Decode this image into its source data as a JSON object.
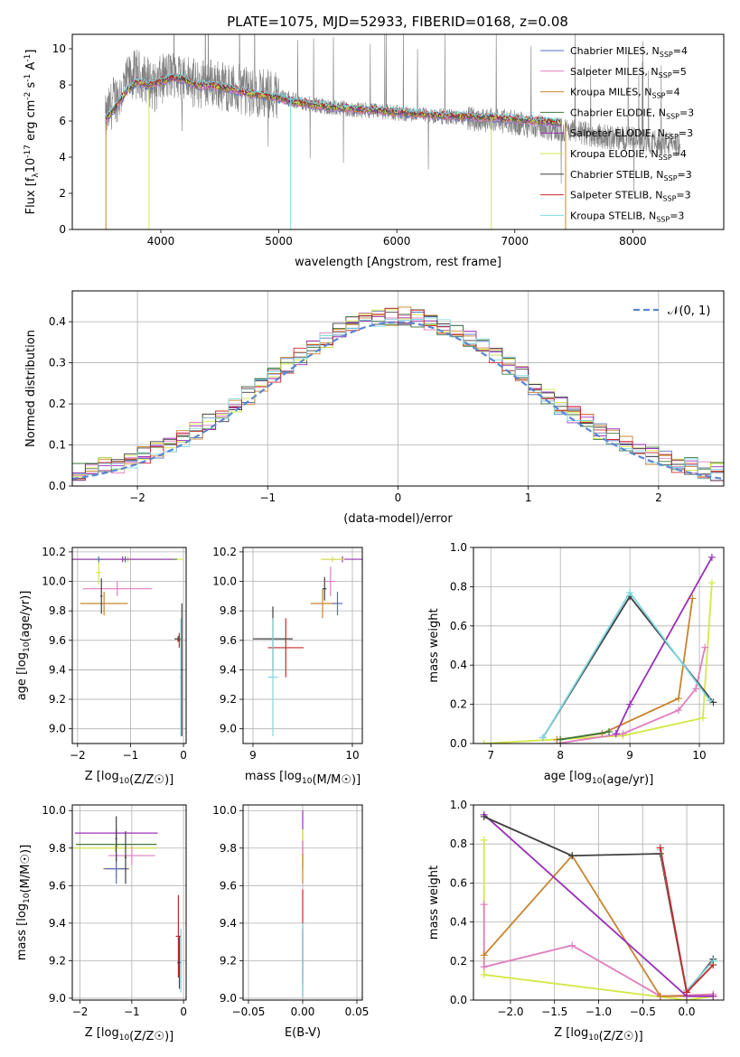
{
  "figure": {
    "title": "PLATE=1075, MJD=52933, FIBERID=0168, z=0.08"
  },
  "chart_data": [
    {
      "id": "spectrum",
      "type": "line",
      "title": "PLATE=1075, MJD=52933, FIBERID=0168, z=0.08",
      "xlabel": "wavelength [Angstrom, rest frame]",
      "ylabel_parts": [
        "Flux [f",
        "λ",
        "10",
        "-17",
        " erg cm",
        "-2",
        " s",
        "-1",
        " A",
        "-1",
        "]"
      ],
      "xlim": [
        3250,
        8770
      ],
      "ylim": [
        0,
        10.8
      ],
      "xticks": [
        4000,
        5000,
        6000,
        7000,
        8000
      ],
      "yticks": [
        0,
        2,
        4,
        6,
        8,
        10
      ],
      "grid": false,
      "legend_position": "top-right",
      "data_color": "#808080",
      "data_x": [
        3530,
        3560,
        3600,
        3650,
        3700,
        3750,
        3800,
        3850,
        3900,
        3950,
        4000,
        4100,
        4200,
        4300,
        4400,
        4500,
        4600,
        4700,
        4800,
        4900,
        5000,
        5100,
        5200,
        5300,
        5400,
        5500,
        5700,
        5900,
        6100,
        6300,
        6500,
        6700,
        6900,
        7100,
        7300,
        7430,
        7600,
        7800,
        8000,
        8200,
        8400
      ],
      "data_y": [
        6.0,
        6.5,
        7.2,
        7.4,
        8.0,
        8.5,
        8.6,
        8.4,
        8.2,
        7.8,
        8.3,
        8.6,
        8.4,
        8.0,
        8.2,
        8.0,
        7.8,
        7.7,
        7.5,
        7.6,
        7.4,
        7.2,
        7.0,
        6.9,
        6.8,
        6.7,
        6.6,
        6.5,
        6.4,
        6.3,
        6.2,
        6.1,
        6.0,
        5.8,
        5.6,
        5.5,
        5.3,
        5.1,
        5.0,
        4.8,
        4.7
      ],
      "model_x": [
        3530,
        3600,
        3700,
        3800,
        3900,
        4000,
        4100,
        4200,
        4300,
        4400,
        4500,
        4600,
        4700,
        4800,
        4900,
        5000,
        5100,
        5200,
        5400,
        5600,
        5800,
        6000,
        6200,
        6400,
        6600,
        6800,
        7000,
        7200,
        7400
      ],
      "model_y": [
        6.1,
        6.6,
        7.6,
        8.2,
        8.0,
        8.2,
        8.4,
        8.3,
        8.0,
        8.0,
        7.9,
        7.8,
        7.6,
        7.5,
        7.4,
        7.3,
        7.1,
        7.0,
        6.8,
        6.7,
        6.6,
        6.5,
        6.4,
        6.3,
        6.25,
        6.2,
        6.1,
        6.0,
        5.9
      ],
      "series": [
        {
          "name": "Chabrier MILES, N",
          "sub": "SSP",
          "tail": "=4",
          "color": "#5a6fb8"
        },
        {
          "name": "Salpeter MILES, N",
          "sub": "SSP",
          "tail": "=5",
          "color": "#e07fbf"
        },
        {
          "name": "Kroupa MILES, N",
          "sub": "SSP",
          "tail": "=4",
          "color": "#c8842e"
        },
        {
          "name": "Chabrier ELODIE, N",
          "sub": "SSP",
          "tail": "=3",
          "color": "#3c7a3c"
        },
        {
          "name": "Salpeter ELODIE, N",
          "sub": "SSP",
          "tail": "=3",
          "color": "#9b30b8"
        },
        {
          "name": "Kroupa ELODIE, N",
          "sub": "SSP",
          "tail": "=4",
          "color": "#d4e848"
        },
        {
          "name": "Chabrier STELIB, N",
          "sub": "SSP",
          "tail": "=3",
          "color": "#404040"
        },
        {
          "name": "Salpeter STELIB, N",
          "sub": "SSP",
          "tail": "=3",
          "color": "#c8282a"
        },
        {
          "name": "Kroupa STELIB, N",
          "sub": "SSP",
          "tail": "=3",
          "color": "#7fd8e0"
        }
      ]
    },
    {
      "id": "residuals",
      "type": "line",
      "xlabel": "(data-model)/error",
      "ylabel": "Normed distribution",
      "xlim": [
        -2.5,
        2.5
      ],
      "ylim": [
        0,
        0.475
      ],
      "xticks": [
        -2,
        -1,
        0,
        1,
        2
      ],
      "yticks": [
        0.0,
        0.1,
        0.2,
        0.3,
        0.4
      ],
      "grid": true,
      "legend_position": "top-right",
      "gaussian_label": "𝒩(0, 1)",
      "gaussian_color": "#5b86d0",
      "bin_width": 0.1,
      "bin_start": -2.5,
      "hist_colors": [
        "#5a6fb8",
        "#e07fbf",
        "#c8842e",
        "#3c7a3c",
        "#9b30b8",
        "#d4e848",
        "#404040",
        "#c8282a",
        "#7fd8e0"
      ]
    },
    {
      "id": "age-vs-Z",
      "type": "scatter",
      "xlabel": "Z [log10(Z/Z☉)]",
      "ylabel": "age  [log10(age/yr)]",
      "xlim": [
        -2.1,
        0.05
      ],
      "ylim": [
        8.9,
        10.23
      ],
      "xticks": [
        -2,
        -1,
        0
      ],
      "yticks": [
        9.0,
        9.2,
        9.4,
        9.6,
        9.8,
        10.0,
        10.2
      ],
      "grid": true,
      "points": [
        {
          "x": -1.05,
          "y": 10.15,
          "xerr": 1.05,
          "yerr": 0.02,
          "color": "#d4e848"
        },
        {
          "x": -1.1,
          "y": 10.15,
          "xerr": 0.98,
          "yerr": 0.02,
          "color": "#3c7a3c"
        },
        {
          "x": -1.15,
          "y": 10.15,
          "xerr": 0.95,
          "yerr": 0.02,
          "color": "#9b30b8"
        },
        {
          "x": -1.6,
          "y": 10.06,
          "xerr": 0.05,
          "yerr": 0.08,
          "color": "#d4e848"
        },
        {
          "x": -1.25,
          "y": 9.95,
          "xerr": 0.65,
          "yerr": 0.05,
          "color": "#e07fbf"
        },
        {
          "x": -1.5,
          "y": 9.85,
          "xerr": 0.45,
          "yerr": 0.08,
          "color": "#c8842e"
        },
        {
          "x": -1.6,
          "y": 10.15,
          "xerr": 0.05,
          "yerr": 0.02,
          "color": "#5a6fb8"
        },
        {
          "x": -1.55,
          "y": 9.9,
          "xerr": 0.02,
          "yerr": 0.12,
          "color": "#404040"
        },
        {
          "x": -0.1,
          "y": 9.61,
          "xerr": 0.07,
          "yerr": 0.02,
          "color": "#404040"
        },
        {
          "x": -0.08,
          "y": 9.6,
          "xerr": 0.04,
          "yerr": 0.05,
          "color": "#c8282a"
        },
        {
          "x": -0.05,
          "y": 9.35,
          "xerr": 0.02,
          "yerr": 0.4,
          "color": "#7fd8e0"
        },
        {
          "x": -0.03,
          "y": 9.4,
          "xerr": 0.02,
          "yerr": 0.45,
          "color": "#404040"
        }
      ]
    },
    {
      "id": "age-vs-mass",
      "type": "scatter",
      "xlabel": "mass [log10(M/M☉)]",
      "ylabel": "",
      "xlim": [
        8.9,
        10.1
      ],
      "ylim": [
        8.9,
        10.23
      ],
      "xticks": [
        9,
        10
      ],
      "yticks": [
        9.0,
        9.2,
        9.4,
        9.6,
        9.8,
        10.0,
        10.2
      ],
      "grid": true,
      "points": [
        {
          "x": 9.9,
          "y": 10.15,
          "xerr": 0.2,
          "yerr": 0.02,
          "color": "#9b30b8"
        },
        {
          "x": 9.8,
          "y": 10.15,
          "xerr": 0.12,
          "yerr": 0.02,
          "color": "#d4e848"
        },
        {
          "x": 9.78,
          "y": 10.0,
          "xerr": 0.05,
          "yerr": 0.1,
          "color": "#e07fbf"
        },
        {
          "x": 9.7,
          "y": 9.85,
          "xerr": 0.12,
          "yerr": 0.1,
          "color": "#c8842e"
        },
        {
          "x": 9.85,
          "y": 9.85,
          "xerr": 0.05,
          "yerr": 0.08,
          "color": "#5a6fb8"
        },
        {
          "x": 9.72,
          "y": 9.95,
          "xerr": 0.02,
          "yerr": 0.08,
          "color": "#404040"
        },
        {
          "x": 9.2,
          "y": 9.61,
          "xerr": 0.2,
          "yerr": 0.22,
          "color": "#404040"
        },
        {
          "x": 9.33,
          "y": 9.55,
          "xerr": 0.18,
          "yerr": 0.2,
          "color": "#c8282a"
        },
        {
          "x": 9.2,
          "y": 9.35,
          "xerr": 0.05,
          "yerr": 0.4,
          "color": "#7fd8e0"
        }
      ]
    },
    {
      "id": "weight-vs-age",
      "type": "line",
      "xlabel": "age  [log10(age/yr)]",
      "ylabel": "mass weight",
      "xlim": [
        6.75,
        10.35
      ],
      "ylim": [
        0,
        1.0
      ],
      "xticks": [
        7,
        8,
        9,
        10
      ],
      "yticks": [
        0.0,
        0.2,
        0.4,
        0.6,
        0.8,
        1.0
      ],
      "grid": true,
      "series": [
        {
          "color": "#d4e848",
          "x": [
            6.9,
            8.9,
            10.05,
            10.18
          ],
          "y": [
            0.0,
            0.04,
            0.13,
            0.82
          ]
        },
        {
          "color": "#e07fbf",
          "x": [
            7.95,
            8.9,
            9.7,
            9.95,
            10.08
          ],
          "y": [
            0.0,
            0.05,
            0.17,
            0.28,
            0.49
          ]
        },
        {
          "color": "#c8842e",
          "x": [
            7.95,
            8.6,
            9.7,
            9.9
          ],
          "y": [
            0.02,
            0.05,
            0.23,
            0.74
          ]
        },
        {
          "color": "#9b30b8",
          "x": [
            8.8,
            9.0,
            10.18
          ],
          "y": [
            0.05,
            0.2,
            0.95
          ]
        },
        {
          "color": "#404040",
          "x": [
            7.75,
            9.0,
            10.2
          ],
          "y": [
            0.03,
            0.75,
            0.21
          ]
        },
        {
          "color": "#7fd8e0",
          "x": [
            7.75,
            9.0,
            10.15
          ],
          "y": [
            0.03,
            0.77,
            0.22
          ]
        },
        {
          "color": "#3c7a3c",
          "x": [
            8.0,
            8.7
          ],
          "y": [
            0.02,
            0.06
          ]
        }
      ]
    },
    {
      "id": "mass-vs-Z",
      "type": "scatter",
      "xlabel": "Z [log10(Z/Z☉)]",
      "ylabel": "mass [log10(M/M☉)]",
      "xlim": [
        -2.15,
        0.05
      ],
      "ylim": [
        8.99,
        10.03
      ],
      "xticks": [
        -2,
        -1,
        0
      ],
      "yticks": [
        9.0,
        9.2,
        9.4,
        9.6,
        9.8,
        10.0
      ],
      "grid": true,
      "points": [
        {
          "x": -1.3,
          "y": 9.88,
          "xerr": 0.8,
          "yerr": 0.02,
          "color": "#9b30b8"
        },
        {
          "x": -1.3,
          "y": 9.82,
          "xerr": 0.78,
          "yerr": 0.02,
          "color": "#3c7a3c"
        },
        {
          "x": -1.32,
          "y": 9.8,
          "xerr": 0.8,
          "yerr": 0.02,
          "color": "#d4e848"
        },
        {
          "x": -1.0,
          "y": 9.76,
          "xerr": 0.45,
          "yerr": 0.05,
          "color": "#e07fbf"
        },
        {
          "x": -1.3,
          "y": 9.69,
          "xerr": 0.25,
          "yerr": 0.05,
          "color": "#c8842e"
        },
        {
          "x": -1.3,
          "y": 9.69,
          "xerr": 0.22,
          "yerr": 0.08,
          "color": "#5a6fb8"
        },
        {
          "x": -1.3,
          "y": 9.85,
          "xerr": 0.02,
          "yerr": 0.12,
          "color": "#404040"
        },
        {
          "x": -1.12,
          "y": 9.75,
          "xerr": 0.02,
          "yerr": 0.14,
          "color": "#404040"
        },
        {
          "x": -0.1,
          "y": 9.33,
          "xerr": 0.05,
          "yerr": 0.22,
          "color": "#c8282a"
        },
        {
          "x": -0.08,
          "y": 9.19,
          "xerr": 0.04,
          "yerr": 0.14,
          "color": "#404040"
        },
        {
          "x": -0.05,
          "y": 9.2,
          "xerr": 0.02,
          "yerr": 0.17,
          "color": "#7fd8e0"
        }
      ]
    },
    {
      "id": "mass-vs-EBV",
      "type": "scatter",
      "xlabel": "E(B-V)",
      "ylabel": "",
      "xlim": [
        -0.055,
        0.055
      ],
      "ylim": [
        8.99,
        10.03
      ],
      "xticks": [
        -0.05,
        0.0,
        0.05
      ],
      "xtick_labels": [
        "−0.05",
        "0.00",
        "0.05"
      ],
      "yticks": [
        9.0,
        9.2,
        9.4,
        9.6,
        9.8,
        10.0
      ],
      "grid": true,
      "points": [
        {
          "x": 0.0,
          "y": 9.88,
          "xerr": 0.0,
          "yerr": 0.12,
          "color": "#9b30b8"
        },
        {
          "x": 0.0,
          "y": 9.8,
          "xerr": 0.0,
          "yerr": 0.1,
          "color": "#d4e848"
        },
        {
          "x": 0.0,
          "y": 9.76,
          "xerr": 0.0,
          "yerr": 0.08,
          "color": "#e07fbf"
        },
        {
          "x": 0.0,
          "y": 9.69,
          "xerr": 0.0,
          "yerr": 0.08,
          "color": "#c8842e"
        },
        {
          "x": 0.0,
          "y": 9.33,
          "xerr": 0.0,
          "yerr": 0.25,
          "color": "#c8282a"
        },
        {
          "x": 0.0,
          "y": 9.19,
          "xerr": 0.0,
          "yerr": 0.18,
          "color": "#404040"
        },
        {
          "x": 0.0,
          "y": 9.2,
          "xerr": 0.0,
          "yerr": 0.2,
          "color": "#7fd8e0"
        }
      ]
    },
    {
      "id": "weight-vs-Z",
      "type": "line",
      "xlabel": "Z [log10(Z/Z☉)]",
      "ylabel": "mass weight",
      "xlim": [
        -2.42,
        0.42
      ],
      "ylim": [
        0,
        1.0
      ],
      "xticks": [
        -2.0,
        -1.5,
        -1.0,
        -0.5,
        0.0
      ],
      "xtick_labels": [
        "−2.0",
        "−1.5",
        "−1.0",
        "−0.5",
        "0.0"
      ],
      "yticks": [
        0.0,
        0.2,
        0.4,
        0.6,
        0.8,
        1.0
      ],
      "grid": true,
      "series": [
        {
          "color": "#d4e848",
          "x": [
            -2.3,
            -2.3,
            0.0,
            0.3
          ],
          "y": [
            0.82,
            0.13,
            0.0,
            0.02
          ]
        },
        {
          "color": "#e07fbf",
          "x": [
            -2.3,
            -2.3,
            -1.3,
            -0.3,
            0.3
          ],
          "y": [
            0.49,
            0.17,
            0.28,
            0.02,
            0.03
          ]
        },
        {
          "color": "#c8842e",
          "x": [
            -2.3,
            -1.3,
            -0.3,
            0.3
          ],
          "y": [
            0.23,
            0.74,
            0.02,
            0.02
          ]
        },
        {
          "color": "#9b30b8",
          "x": [
            -2.3,
            0.0,
            0.3
          ],
          "y": [
            0.95,
            0.02,
            0.02
          ]
        },
        {
          "color": "#404040",
          "x": [
            -2.3,
            -1.3,
            -0.3,
            0.0,
            0.3
          ],
          "y": [
            0.94,
            0.74,
            0.75,
            0.04,
            0.21
          ]
        },
        {
          "color": "#7fd8e0",
          "x": [
            -0.3,
            0.0,
            0.3
          ],
          "y": [
            0.77,
            0.05,
            0.2
          ]
        },
        {
          "color": "#c8282a",
          "x": [
            -0.3,
            0.0,
            0.3
          ],
          "y": [
            0.78,
            0.04,
            0.18
          ]
        }
      ]
    }
  ]
}
